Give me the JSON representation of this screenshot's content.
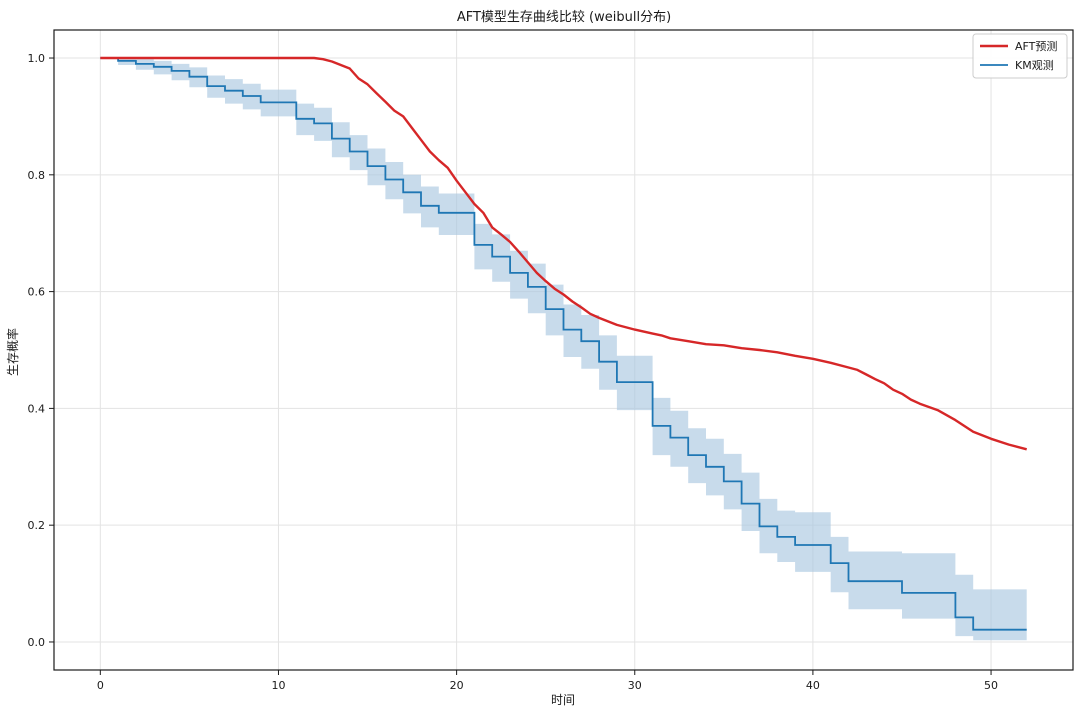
{
  "chart_data": {
    "type": "line",
    "title": "AFT模型生存曲线比较 (weibull分布)",
    "xlabel": "时间",
    "ylabel": "生存概率",
    "xlim": [
      -2.6,
      54.6
    ],
    "ylim": [
      -0.048,
      1.048
    ],
    "xticks": [
      0,
      10,
      20,
      30,
      40,
      50
    ],
    "yticks": [
      0.0,
      0.2,
      0.4,
      0.6,
      0.8,
      1.0
    ],
    "xtick_labels": [
      "0",
      "10",
      "20",
      "30",
      "40",
      "50"
    ],
    "ytick_labels": [
      "0.0",
      "0.2",
      "0.4",
      "0.6",
      "0.8",
      "1.0"
    ],
    "grid": true,
    "legend_position": "top-right",
    "colors": {
      "afi": "#d62728",
      "km": "#1f77b4",
      "band": "#aac8e0"
    },
    "series": [
      {
        "name": "AFT预测",
        "kind": "line",
        "color": "#d62728",
        "x": [
          0,
          2,
          4,
          6,
          8,
          10,
          11,
          12,
          12.5,
          13,
          13.5,
          14,
          14.5,
          15,
          15.5,
          16,
          16.5,
          17,
          17.5,
          18,
          18.5,
          19,
          19.5,
          20,
          20.5,
          21,
          21.5,
          22,
          22.5,
          23,
          23.5,
          24,
          24.5,
          25,
          25.5,
          26,
          26.5,
          27,
          27.5,
          28,
          29,
          30,
          31,
          31.5,
          32,
          33,
          34,
          35,
          36,
          37,
          38,
          39,
          40,
          41,
          42,
          42.5,
          43,
          43.5,
          44,
          44.5,
          45,
          45.5,
          46,
          47,
          48,
          49,
          50,
          51,
          52
        ],
        "y": [
          1.0,
          1.0,
          1.0,
          1.0,
          1.0,
          1.0,
          1.0,
          1.0,
          0.998,
          0.994,
          0.988,
          0.982,
          0.965,
          0.955,
          0.94,
          0.925,
          0.91,
          0.9,
          0.88,
          0.86,
          0.84,
          0.825,
          0.812,
          0.79,
          0.77,
          0.75,
          0.735,
          0.71,
          0.698,
          0.685,
          0.668,
          0.65,
          0.632,
          0.618,
          0.605,
          0.595,
          0.583,
          0.573,
          0.562,
          0.555,
          0.543,
          0.535,
          0.528,
          0.525,
          0.52,
          0.515,
          0.51,
          0.508,
          0.503,
          0.5,
          0.496,
          0.49,
          0.485,
          0.478,
          0.47,
          0.466,
          0.458,
          0.45,
          0.443,
          0.432,
          0.425,
          0.415,
          0.408,
          0.397,
          0.38,
          0.36,
          0.348,
          0.338,
          0.33
        ]
      },
      {
        "name": "KM观测",
        "kind": "step",
        "color": "#1f77b4",
        "x": [
          0,
          1,
          2,
          3,
          4,
          5,
          6,
          7,
          8,
          9,
          11,
          12,
          13,
          14,
          15,
          16,
          17,
          18,
          19,
          21,
          22,
          23,
          24,
          25,
          26,
          27,
          28,
          29,
          31,
          32,
          33,
          34,
          35,
          36,
          37,
          38,
          39,
          40,
          41,
          42,
          45,
          48,
          49,
          52
        ],
        "y": [
          1.0,
          0.995,
          0.99,
          0.985,
          0.978,
          0.968,
          0.952,
          0.944,
          0.935,
          0.924,
          0.896,
          0.888,
          0.862,
          0.84,
          0.815,
          0.792,
          0.77,
          0.747,
          0.735,
          0.68,
          0.66,
          0.632,
          0.608,
          0.57,
          0.535,
          0.515,
          0.48,
          0.445,
          0.37,
          0.35,
          0.32,
          0.3,
          0.275,
          0.237,
          0.198,
          0.18,
          0.166,
          0.166,
          0.135,
          0.104,
          0.084,
          0.042,
          0.021,
          0.021
        ],
        "ci_lower": [
          1.0,
          0.988,
          0.98,
          0.972,
          0.962,
          0.95,
          0.932,
          0.922,
          0.912,
          0.9,
          0.868,
          0.858,
          0.83,
          0.808,
          0.782,
          0.758,
          0.734,
          0.71,
          0.697,
          0.638,
          0.617,
          0.588,
          0.563,
          0.525,
          0.488,
          0.468,
          0.432,
          0.397,
          0.32,
          0.3,
          0.272,
          0.251,
          0.227,
          0.19,
          0.152,
          0.137,
          0.12,
          0.12,
          0.085,
          0.056,
          0.04,
          0.01,
          0.003,
          0.003
        ],
        "ci_upper": [
          1.0,
          1.0,
          0.998,
          0.995,
          0.99,
          0.984,
          0.97,
          0.964,
          0.956,
          0.946,
          0.922,
          0.915,
          0.89,
          0.868,
          0.845,
          0.822,
          0.8,
          0.78,
          0.768,
          0.716,
          0.698,
          0.67,
          0.648,
          0.612,
          0.578,
          0.56,
          0.525,
          0.49,
          0.418,
          0.396,
          0.366,
          0.348,
          0.322,
          0.29,
          0.245,
          0.225,
          0.222,
          0.222,
          0.18,
          0.155,
          0.152,
          0.115,
          0.09,
          0.09
        ]
      }
    ]
  }
}
